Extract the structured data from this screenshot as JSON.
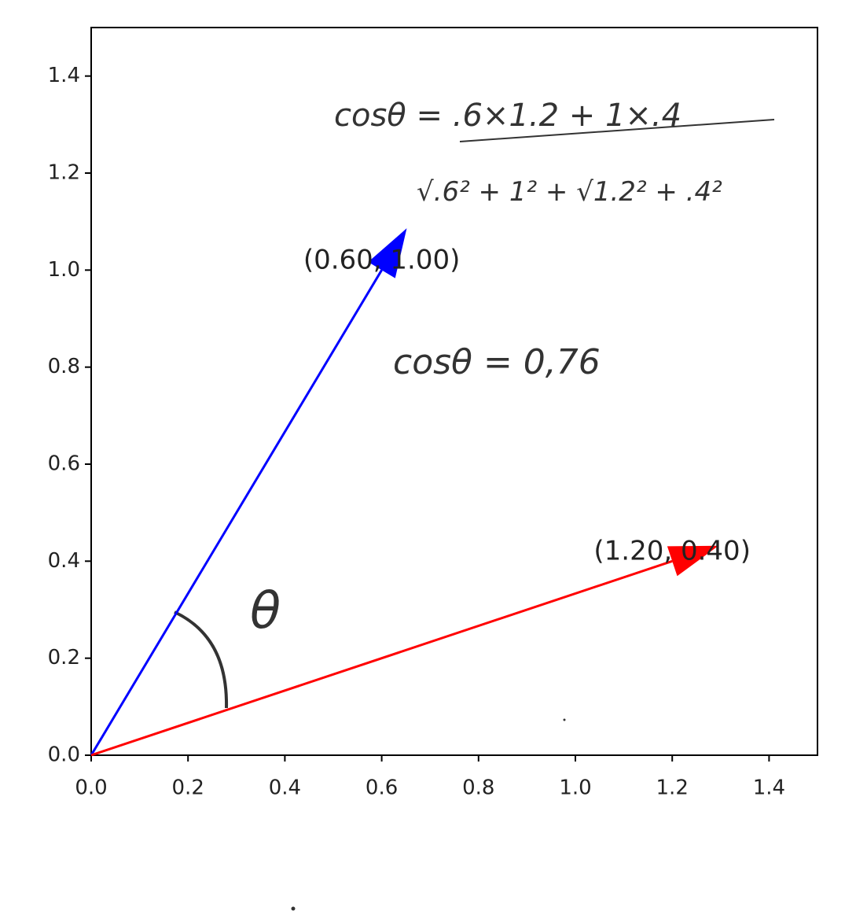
{
  "chart_data": {
    "type": "vector",
    "xlim": [
      0,
      1.5
    ],
    "ylim": [
      0,
      1.5
    ],
    "xticks": [
      {
        "value": 0,
        "label": "0.0"
      },
      {
        "value": 0.2,
        "label": "0.2"
      },
      {
        "value": 0.4,
        "label": "0.4"
      },
      {
        "value": 0.6,
        "label": "0.6"
      },
      {
        "value": 0.8,
        "label": "0.8"
      },
      {
        "value": 1,
        "label": "1.0"
      },
      {
        "value": 1.2,
        "label": "1.2"
      },
      {
        "value": 1.4,
        "label": "1.4"
      }
    ],
    "yticks": [
      {
        "value": 0,
        "label": "0.0"
      },
      {
        "value": 0.2,
        "label": "0.2"
      },
      {
        "value": 0.4,
        "label": "0.4"
      },
      {
        "value": 0.6,
        "label": "0.6"
      },
      {
        "value": 0.8,
        "label": "0.8"
      },
      {
        "value": 1,
        "label": "1.0"
      },
      {
        "value": 1.2,
        "label": "1.2"
      },
      {
        "value": 1.4,
        "label": "1.4"
      }
    ],
    "series": [
      {
        "color": "#0000ff",
        "x": [
          0.6
        ],
        "values": [
          1.0
        ],
        "value_labels": [
          "(0.60, 1.00)"
        ]
      },
      {
        "color": "#ff0000",
        "x": [
          1.2
        ],
        "values": [
          0.4
        ],
        "value_labels": [
          "(1.20, 0.40)"
        ]
      }
    ],
    "annotations": [
      "cosθ = .6×1.2 + 1×.4",
      "√.6² + 1²  + √1.2² + .4²",
      "cosθ = 0,76",
      "θ"
    ]
  }
}
